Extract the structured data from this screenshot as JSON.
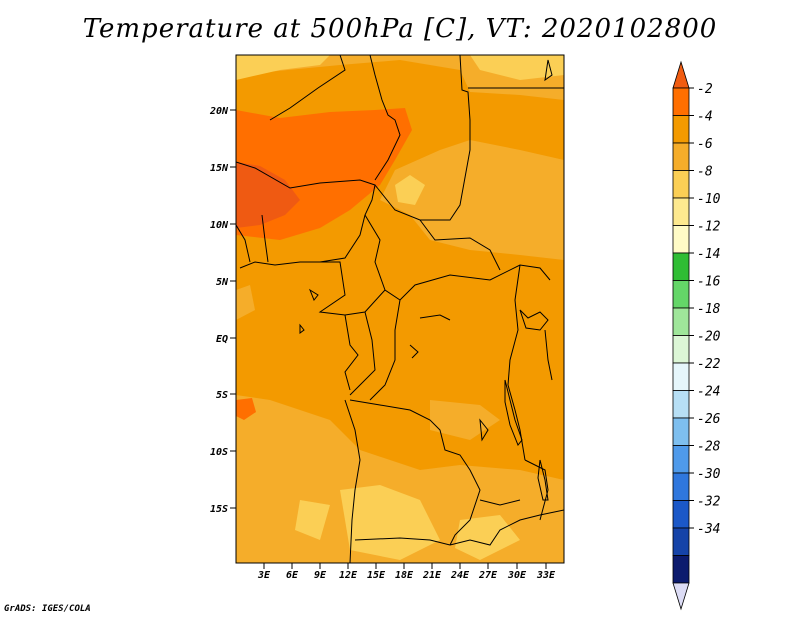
{
  "title": "Temperature at 500hPa [C], VT: 2020102800",
  "credit": "GrADS: IGES/COLA",
  "map": {
    "lat_labels": [
      "20N",
      "15N",
      "10N",
      "5N",
      "EQ",
      "5S",
      "10S",
      "15S"
    ],
    "lon_labels": [
      "3E",
      "6E",
      "9E",
      "12E",
      "15E",
      "18E",
      "21E",
      "24E",
      "27E",
      "30E",
      "33E"
    ]
  },
  "colorbar": {
    "labels": [
      "-2",
      "-4",
      "-6",
      "-8",
      "-10",
      "-12",
      "-14",
      "-16",
      "-18",
      "-20",
      "-22",
      "-24",
      "-26",
      "-28",
      "-30",
      "-32",
      "-34"
    ],
    "colors": [
      "#ff6f00",
      "#f39a00",
      "#f5ad2a",
      "#fbcf55",
      "#fde98f",
      "#fffbc6",
      "#2fbd34",
      "#64d668",
      "#9fe69a",
      "#dcf6d6",
      "#e6f6fb",
      "#b7dff5",
      "#7ebfef",
      "#4f9aea",
      "#2f77dd",
      "#1b58c8",
      "#1543a8",
      "#0c1b6e"
    ],
    "top_arrow_color": "#f05c11",
    "bottom_arrow_color": "#dcdcf5"
  }
}
